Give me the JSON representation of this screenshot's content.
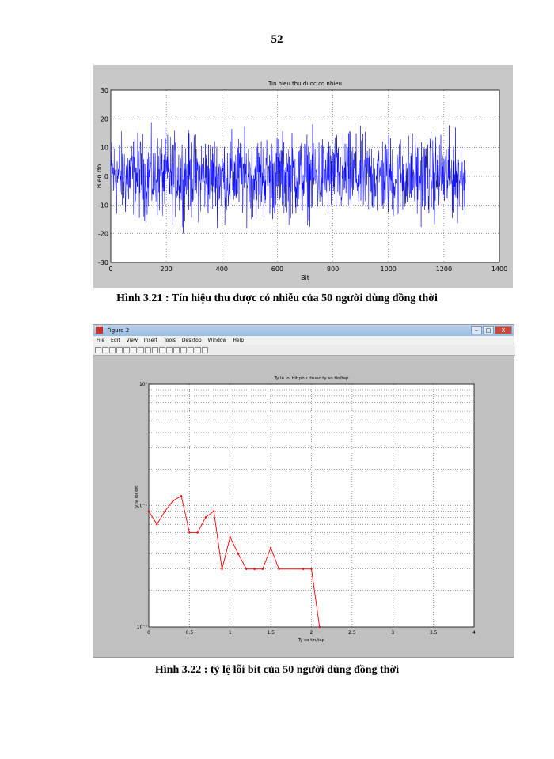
{
  "page_number": "52",
  "figure1": {
    "caption": "Hình 3.21 : Tín hiệu thu được có nhiễu của 50 người dùng đồng thời",
    "title": "Tin hieu thu duoc co nhieu",
    "xlabel": "Bit",
    "ylabel": "Bien do",
    "xticks": [
      "0",
      "200",
      "400",
      "600",
      "800",
      "1000",
      "1200",
      "1400"
    ],
    "yticks": [
      "30",
      "20",
      "10",
      "0",
      "-10",
      "-20",
      "-30"
    ],
    "colors": {
      "line": "#0000ff",
      "background": "#c8c8c8"
    }
  },
  "figure2": {
    "window_title": "Figure 2",
    "window_buttons": [
      "–",
      "□",
      "X"
    ],
    "menu": [
      "File",
      "Edit",
      "View",
      "Insert",
      "Tools",
      "Desktop",
      "Window",
      "Help"
    ],
    "caption": "Hình 3.22 : tỷ lệ lỗi bit của 50 người dùng đồng thời",
    "title": "Ty le loi bit phu thuoc ty so tin/tap",
    "xlabel": "Ty so tin/tap",
    "ylabel": "Ty le loi bit",
    "xticks": [
      "0",
      "0.5",
      "1",
      "1.5",
      "2",
      "2.5",
      "3",
      "3.5",
      "4"
    ],
    "yticks": [
      "10⁰",
      "10⁻¹",
      "10⁻²"
    ],
    "colors": {
      "line": "#ff0000",
      "background": "#c0c0c0"
    }
  },
  "chart_data": [
    {
      "type": "line",
      "title": "Tin hieu thu duoc co nhieu",
      "xlabel": "Bit",
      "ylabel": "Bien do",
      "xlim": [
        0,
        1400
      ],
      "ylim": [
        -30,
        30
      ],
      "grid": true,
      "series": [
        {
          "n_points": 1280,
          "amplitude_range": [
            -22,
            22
          ]
        }
      ]
    },
    {
      "type": "line",
      "title": "Ty le loi bit phu thuoc ty so tin/tap",
      "xlabel": "Ty so tin/tap",
      "ylabel": "Ty le loi bit",
      "xlim": [
        0,
        4
      ],
      "ylim": [
        0.01,
        1
      ],
      "yscale": "log",
      "grid": true,
      "series": [
        {
          "x": [
            0,
            0.1,
            0.2,
            0.3,
            0.4,
            0.5,
            0.6,
            0.7,
            0.8,
            0.9,
            1.0,
            1.1,
            1.2,
            1.3,
            1.4,
            1.5,
            1.6,
            1.9,
            2.0,
            2.1
          ],
          "y": [
            0.09,
            0.07,
            0.09,
            0.11,
            0.12,
            0.06,
            0.06,
            0.08,
            0.09,
            0.03,
            0.055,
            0.04,
            0.03,
            0.03,
            0.03,
            0.045,
            0.03,
            0.03,
            0.03,
            0.01
          ]
        }
      ]
    }
  ]
}
